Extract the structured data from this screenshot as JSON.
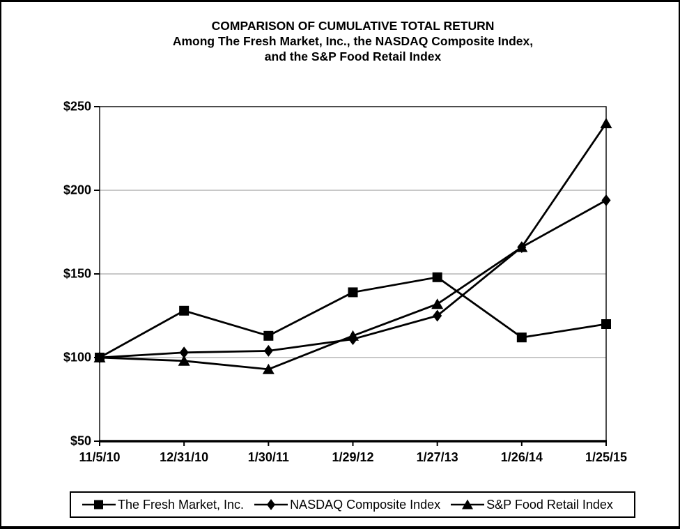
{
  "chart_data": {
    "type": "line",
    "title": "COMPARISON OF CUMULATIVE TOTAL RETURN Among The Fresh Market, Inc., the NASDAQ Composite Index, and the S&P Food Retail Index",
    "title_lines": [
      "COMPARISON OF CUMULATIVE TOTAL RETURN",
      "Among The Fresh Market, Inc., the NASDAQ Composite Index,",
      "and the S&P Food Retail Index"
    ],
    "categories": [
      "11/5/10",
      "12/31/10",
      "1/30/11",
      "1/29/12",
      "1/27/13",
      "1/26/14",
      "1/25/15"
    ],
    "series": [
      {
        "name": "The Fresh Market, Inc.",
        "marker": "square",
        "values": [
          100,
          128,
          113,
          139,
          148,
          112,
          120
        ]
      },
      {
        "name": "NASDAQ Composite Index",
        "marker": "diamond",
        "values": [
          100,
          103,
          104,
          111,
          125,
          166,
          194
        ]
      },
      {
        "name": "S&P Food Retail Index",
        "marker": "triangle",
        "values": [
          100,
          98,
          93,
          113,
          132,
          166,
          240
        ]
      }
    ],
    "xlabel": "",
    "ylabel": "",
    "ylim": [
      50,
      250
    ],
    "y_axis": {
      "min": 50,
      "max": 250,
      "tick_step": 50,
      "ticks": [
        {
          "value": 50,
          "label": "$50"
        },
        {
          "value": 100,
          "label": "$100"
        },
        {
          "value": 150,
          "label": "$150"
        },
        {
          "value": 200,
          "label": "$200"
        },
        {
          "value": 250,
          "label": "$250"
        }
      ],
      "gridline_values": [
        100,
        150,
        200
      ]
    },
    "grid": "horizontal-only",
    "legend_position": "bottom",
    "line_color": "#000000",
    "marker_color": "#000000",
    "gridline_color": "#a6a6a6",
    "plot_border_color": "#000000",
    "background_color": "#ffffff"
  }
}
